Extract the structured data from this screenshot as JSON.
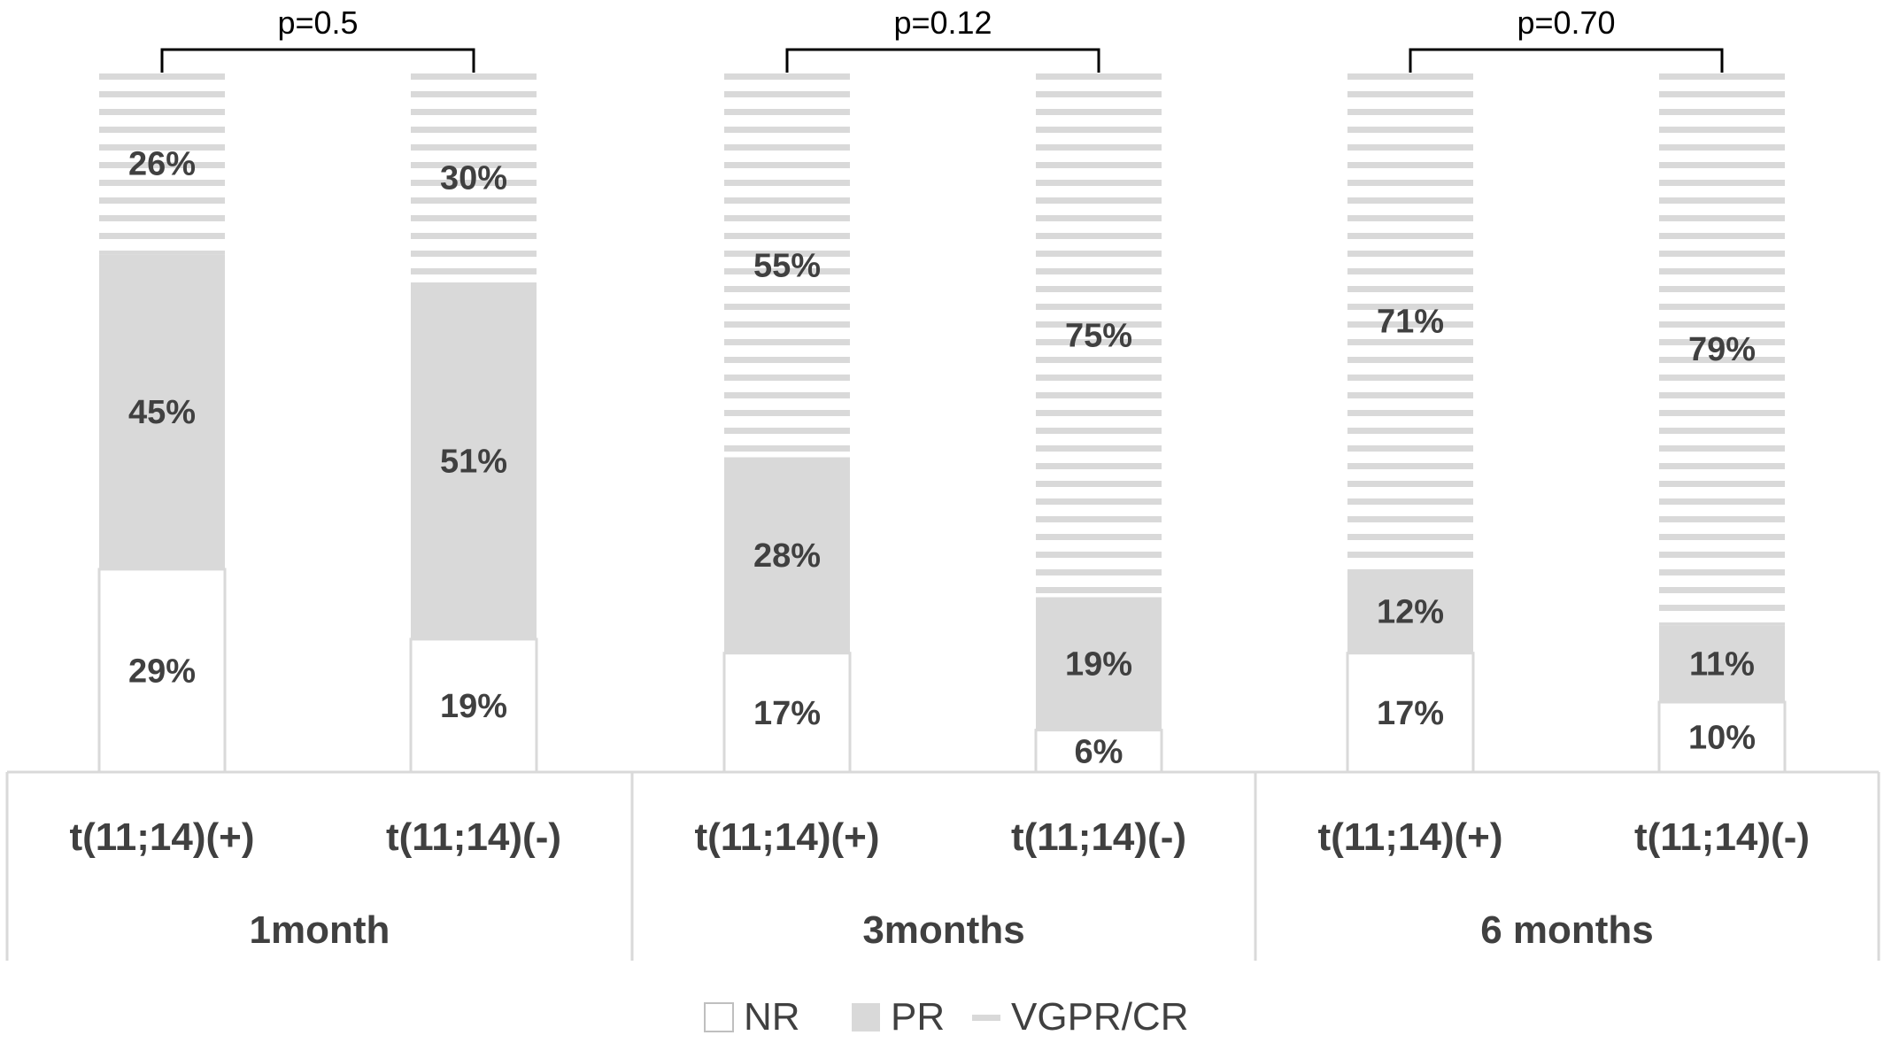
{
  "chart_data": {
    "type": "bar",
    "stacked": true,
    "ylim": [
      0,
      100
    ],
    "grid": false,
    "legend_position": "bottom",
    "groups": [
      {
        "name": "1month",
        "p_value": "p=0.5",
        "bars": [
          {
            "category": "t(11;14)(+)",
            "NR": 29,
            "PR": 45,
            "VGPR/CR": 26
          },
          {
            "category": "t(11;14)(-)",
            "NR": 19,
            "PR": 51,
            "VGPR/CR": 30
          }
        ]
      },
      {
        "name": "3months",
        "p_value": "p=0.12",
        "bars": [
          {
            "category": "t(11;14)(+)",
            "NR": 17,
            "PR": 28,
            "VGPR/CR": 55
          },
          {
            "category": "t(11;14)(-)",
            "NR": 6,
            "PR": 19,
            "VGPR/CR": 75
          }
        ]
      },
      {
        "name": "6 months",
        "p_value": "p=0.70",
        "bars": [
          {
            "category": "t(11;14)(+)",
            "NR": 17,
            "PR": 12,
            "VGPR/CR": 71
          },
          {
            "category": "t(11;14)(-)",
            "NR": 10,
            "PR": 11,
            "VGPR/CR": 79
          }
        ]
      }
    ],
    "series": [
      {
        "name": "NR",
        "color": "#ffffff",
        "pattern": "solid"
      },
      {
        "name": "PR",
        "color": "#d9d9d9",
        "pattern": "solid"
      },
      {
        "name": "VGPR/CR",
        "color": "#d9d9d9",
        "pattern": "horizontal-dash"
      }
    ]
  }
}
